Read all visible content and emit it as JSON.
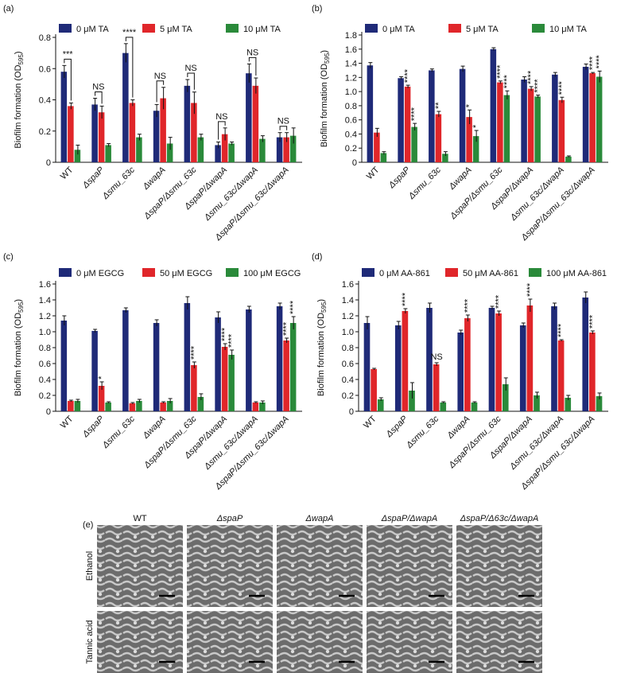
{
  "chart_data": [
    {
      "type": "bar",
      "panel": "(a)",
      "ylabel": {
        "text": "Biofilm formation (OD",
        "subscript": "595",
        "end": ")"
      },
      "categories": [
        "WT",
        "ΔspaP",
        "Δsmu_63c",
        "ΔwapA",
        "ΔspaP/Δsmu_63c",
        "ΔspaP/ΔwapA",
        "Δsmu_63c/ΔwapA",
        "ΔspaP/Δsmu_63c/ΔwapA"
      ],
      "ylim": [
        0,
        0.8
      ],
      "yticks": [
        0,
        0.2,
        0.4,
        0.6,
        0.8
      ],
      "series": [
        {
          "name": "0 μM TA",
          "color": "#1f2a78",
          "values": [
            0.58,
            0.37,
            0.7,
            0.33,
            0.49,
            0.11,
            0.57,
            0.16
          ],
          "errors": [
            0.04,
            0.04,
            0.06,
            0.04,
            0.04,
            0.02,
            0.06,
            0.03
          ],
          "annotations": [
            "***",
            "NS",
            "****",
            "NS",
            "NS",
            "NS",
            "NS",
            "NS"
          ]
        },
        {
          "name": "5 μM TA",
          "color": "#e0262a",
          "values": [
            0.36,
            0.32,
            0.38,
            0.41,
            0.38,
            0.18,
            0.49,
            0.16
          ],
          "errors": [
            0.02,
            0.04,
            0.02,
            0.07,
            0.07,
            0.04,
            0.05,
            0.03
          ]
        },
        {
          "name": "10 μM TA",
          "color": "#2a8a3a",
          "values": [
            0.08,
            0.11,
            0.16,
            0.12,
            0.16,
            0.12,
            0.15,
            0.17
          ],
          "errors": [
            0.03,
            0.01,
            0.02,
            0.04,
            0.02,
            0.01,
            0.02,
            0.05
          ]
        }
      ]
    },
    {
      "type": "bar",
      "panel": "(b)",
      "ylabel": {
        "text": "Biofilm formation (OD",
        "subscript": "595",
        "end": ")"
      },
      "categories": [
        "WT",
        "ΔspaP",
        "Δsmu_63c",
        "ΔwapA",
        "ΔspaP/Δsmu_63c",
        "ΔspaP/ΔwapA",
        "Δsmu_63c/ΔwapA",
        "ΔspaP/Δsmu_63c/ΔwapA"
      ],
      "ylim": [
        0,
        1.8
      ],
      "yticks": [
        0,
        0.2,
        0.4,
        0.6,
        0.8,
        {
          "value": 1,
          "label": "1.0"
        },
        1.2,
        1.4,
        1.6,
        1.8
      ],
      "series": [
        {
          "name": "0 μM TA",
          "color": "#1f2a78",
          "values": [
            1.37,
            1.19,
            1.3,
            1.32,
            1.6,
            1.17,
            1.24,
            1.35
          ],
          "errors": [
            0.04,
            0.02,
            0.02,
            0.04,
            0.02,
            0.04,
            0.03,
            0.04
          ]
        },
        {
          "name": "5 μM TA",
          "color": "#e0262a",
          "values": [
            0.42,
            1.07,
            0.68,
            0.64,
            1.13,
            1.04,
            0.88,
            1.26
          ],
          "errors": [
            0.06,
            0.02,
            0.04,
            0.1,
            0.02,
            0.03,
            0.04,
            0.01
          ],
          "annotations": [
            null,
            "****",
            "**",
            "*",
            "****",
            "****",
            "****",
            "****"
          ]
        },
        {
          "name": "10 μM TA",
          "color": "#2a8a3a",
          "values": [
            0.13,
            0.5,
            0.12,
            0.37,
            0.95,
            0.93,
            0.08,
            1.21
          ],
          "errors": [
            0.02,
            0.05,
            0.03,
            0.08,
            0.06,
            0.02,
            0.01,
            0.08
          ],
          "annotations": [
            null,
            "****",
            null,
            "*",
            "****",
            "****",
            null,
            "****"
          ]
        }
      ]
    },
    {
      "type": "bar",
      "panel": "(c)",
      "ylabel": {
        "text": "Biofilm formation (OD",
        "subscript": "595",
        "end": ")"
      },
      "categories": [
        "WT",
        "ΔspaP",
        "Δsmu_63c",
        "ΔwapA",
        "ΔspaP/Δsmu_63c",
        "ΔspaP/ΔwapA",
        "Δsmu_63c/ΔwapA",
        "ΔspaP/Δsmu_63c/ΔwapA"
      ],
      "ylim": [
        0,
        1.6
      ],
      "yticks": [
        0,
        0.2,
        0.4,
        0.6,
        0.8,
        {
          "value": 1,
          "label": "1.0"
        },
        1.2,
        1.4,
        1.6
      ],
      "series": [
        {
          "name": "0 μM EGCG",
          "color": "#1f2a78",
          "values": [
            1.14,
            1.01,
            1.27,
            1.11,
            1.36,
            1.18,
            1.28,
            1.32
          ],
          "errors": [
            0.06,
            0.02,
            0.03,
            0.04,
            0.08,
            0.07,
            0.04,
            0.04
          ]
        },
        {
          "name": "50 μM EGCG",
          "color": "#e0262a",
          "values": [
            0.13,
            0.32,
            0.1,
            0.11,
            0.58,
            0.81,
            0.11,
            0.89
          ],
          "errors": [
            0.01,
            0.05,
            0.01,
            0.01,
            0.04,
            0.04,
            0.01,
            0.03
          ],
          "annotations": [
            null,
            "*",
            null,
            null,
            "****",
            "****",
            null,
            "****"
          ]
        },
        {
          "name": "100 μM EGCG",
          "color": "#2a8a3a",
          "values": [
            0.13,
            0.11,
            0.13,
            0.13,
            0.18,
            0.71,
            0.11,
            1.11
          ],
          "errors": [
            0.02,
            0.01,
            0.02,
            0.03,
            0.04,
            0.06,
            0.02,
            0.08
          ],
          "annotations": [
            null,
            null,
            null,
            null,
            null,
            "****",
            null,
            "****"
          ]
        }
      ]
    },
    {
      "type": "bar",
      "panel": "(d)",
      "ylabel": {
        "text": "Biofilm formation (OD",
        "subscript": "595",
        "end": ")"
      },
      "categories": [
        "WT",
        "ΔspaP",
        "Δsmu_63c",
        "ΔwapA",
        "ΔspaP/Δsmu_63c",
        "ΔspaP/ΔwapA",
        "Δsmu_63c/ΔwapA",
        "ΔspaP/Δsmu_63c/ΔwapA"
      ],
      "ylim": [
        0,
        1.6
      ],
      "yticks": [
        0,
        0.2,
        0.4,
        0.6,
        0.8,
        {
          "value": 1,
          "label": "1.0"
        },
        1.2,
        1.4,
        1.6
      ],
      "series": [
        {
          "name": "0 μM AA-861",
          "color": "#1f2a78",
          "values": [
            1.11,
            1.08,
            1.3,
            0.99,
            1.3,
            1.08,
            1.32,
            1.43
          ],
          "errors": [
            0.08,
            0.05,
            0.06,
            0.03,
            0.02,
            0.03,
            0.04,
            0.07
          ]
        },
        {
          "name": "50 μM AA-861",
          "color": "#e0262a",
          "values": [
            0.53,
            1.26,
            0.59,
            1.17,
            1.23,
            1.33,
            0.89,
            0.99
          ],
          "errors": [
            0.01,
            0.03,
            0.02,
            0.04,
            0.03,
            0.08,
            0.01,
            0.02
          ],
          "annotations": [
            null,
            "****",
            "NS",
            "****",
            "****",
            "****",
            "****",
            "****"
          ]
        },
        {
          "name": "100 μM AA-861",
          "color": "#2a8a3a",
          "values": [
            0.15,
            0.26,
            0.11,
            0.11,
            0.34,
            0.2,
            0.17,
            0.19
          ],
          "errors": [
            0.02,
            0.1,
            0.01,
            0.01,
            0.08,
            0.04,
            0.03,
            0.04
          ]
        }
      ]
    }
  ],
  "image_panel": {
    "panel": "(e)",
    "columns": [
      "WT",
      "ΔspaP",
      "ΔwapA",
      "ΔspaP/ΔwapA",
      "ΔspaP/Δ63c/ΔwapA"
    ],
    "rows": [
      "Ethanol",
      "Tannic acid"
    ]
  }
}
